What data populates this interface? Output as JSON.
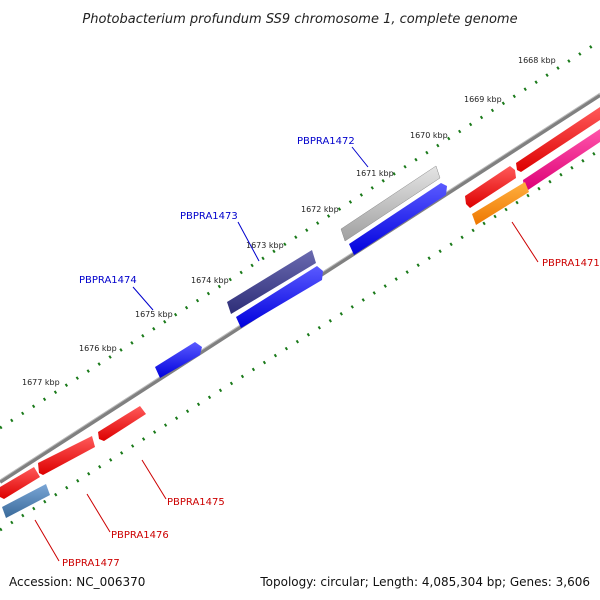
{
  "title": "Photobacterium profundum SS9 chromosome 1, complete genome",
  "footer": {
    "accession": "Accession: NC_006370",
    "summary": "Topology: circular; Length: 4,085,304 bp; Genes: 3,606"
  },
  "ticks": [
    {
      "label": "1668 kbp",
      "pos": 1668
    },
    {
      "label": "1669 kbp",
      "pos": 1669
    },
    {
      "label": "1670 kbp",
      "pos": 1670
    },
    {
      "label": "1671 kbp",
      "pos": 1671
    },
    {
      "label": "1672 kbp",
      "pos": 1672
    },
    {
      "label": "1673 kbp",
      "pos": 1673
    },
    {
      "label": "1674 kbp",
      "pos": 1674
    },
    {
      "label": "1675 kbp",
      "pos": 1675
    },
    {
      "label": "1676 kbp",
      "pos": 1676
    },
    {
      "label": "1677 kbp",
      "pos": 1677
    }
  ],
  "gene_labels": [
    {
      "id": "PBPRA1472",
      "color": "#0000cc",
      "strand": "forward"
    },
    {
      "id": "PBPRA1473",
      "color": "#0000cc",
      "strand": "forward"
    },
    {
      "id": "PBPRA1474",
      "color": "#0000cc",
      "strand": "forward"
    },
    {
      "id": "PBPRA1471",
      "color": "#cc0000",
      "strand": "reverse"
    },
    {
      "id": "PBPRA1475",
      "color": "#cc0000",
      "strand": "reverse"
    },
    {
      "id": "PBPRA1476",
      "color": "#cc0000",
      "strand": "reverse"
    },
    {
      "id": "PBPRA1477",
      "color": "#cc0000",
      "strand": "reverse"
    }
  ],
  "colors": {
    "backbone": "#808080",
    "tick_green": "#1a7a1a",
    "forward_gene": "#0000ee",
    "forward_dark": "#3a3a88",
    "forward_light": "#bbbbbb",
    "reverse_gene": "#ee0000",
    "reverse_pink": "#ee1188",
    "reverse_orange": "#ff8800",
    "reverse_steel": "#4477aa"
  }
}
